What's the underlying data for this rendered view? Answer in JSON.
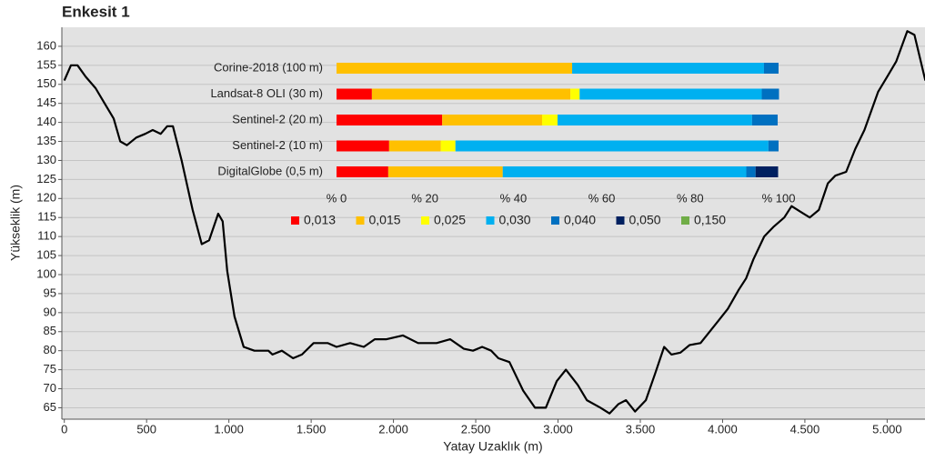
{
  "chart_data": [
    {
      "type": "line",
      "title": "Enkesit 1",
      "x_label": "Yatay Uzaklık (m)",
      "y_label": "Yükseklik (m)",
      "color": "#000000",
      "x": [
        0,
        40,
        80,
        130,
        190,
        245,
        300,
        340,
        380,
        437,
        492,
        537,
        586,
        625,
        660,
        713,
        780,
        835,
        880,
        935,
        962,
        990,
        1034,
        1090,
        1155,
        1240,
        1265,
        1322,
        1390,
        1444,
        1515,
        1600,
        1654,
        1737,
        1820,
        1886,
        1958,
        2057,
        2150,
        2262,
        2345,
        2428,
        2483,
        2539,
        2594,
        2638,
        2705,
        2788,
        2860,
        2926,
        2992,
        3048,
        3120,
        3175,
        3258,
        3313,
        3368,
        3413,
        3468,
        3534,
        3590,
        3645,
        3689,
        3744,
        3800,
        3866,
        3921,
        3977,
        4032,
        4098,
        4143,
        4187,
        4253,
        4308,
        4375,
        4419,
        4474,
        4530,
        4585,
        4640,
        4685,
        4751,
        4806,
        4862,
        4945,
        5000,
        5055,
        5122,
        5166,
        5232
      ],
      "values": [
        151,
        155,
        155,
        152,
        149,
        145,
        141,
        135,
        134,
        136,
        137,
        138,
        137,
        139,
        139,
        130,
        117,
        108,
        109,
        116,
        114,
        101,
        89,
        81,
        80,
        80,
        79,
        80,
        78,
        79,
        82,
        82,
        81,
        82,
        81,
        83,
        83,
        84,
        82,
        82,
        83,
        80.5,
        80,
        81,
        80,
        78,
        77,
        69.5,
        65,
        65,
        72,
        75,
        71,
        67,
        65,
        63.5,
        66,
        67,
        64,
        67,
        74,
        81,
        79,
        79.5,
        81.5,
        82,
        85,
        88,
        91,
        96,
        99,
        104,
        110,
        112.5,
        115,
        118,
        116.5,
        115,
        117,
        124,
        126,
        127,
        133,
        138,
        148,
        152,
        156,
        164,
        163,
        151
      ],
      "xlim": [
        -15,
        5230
      ],
      "ylim": [
        62,
        165
      ],
      "xticks": [
        0,
        500,
        {
          "value": 1000,
          "label": "1.000"
        },
        {
          "value": 1500,
          "label": "1.500"
        },
        {
          "value": 2000,
          "label": "2.000"
        },
        {
          "value": 2500,
          "label": "2.500"
        },
        {
          "value": 3000,
          "label": "3.000"
        },
        {
          "value": 3500,
          "label": "3.500"
        },
        {
          "value": 4000,
          "label": "4.000"
        },
        {
          "value": 4500,
          "label": "4.500"
        },
        {
          "value": 5000,
          "label": "5.000"
        }
      ],
      "yticks": [
        65,
        70,
        75,
        80,
        85,
        90,
        95,
        100,
        105,
        110,
        115,
        120,
        125,
        130,
        135,
        140,
        145,
        150,
        155,
        160
      ],
      "grid": true
    },
    {
      "type": "stacked-barh",
      "categories": [
        "Corine-2018 (100 m)",
        "Landsat-8 OLI (30 m)",
        "Sentinel-2 (20 m)",
        "Sentinel-2 (10 m)",
        "DigitalGlobe (0,5 m)"
      ],
      "series": [
        {
          "name": "0,013",
          "color": "#ff0000",
          "values": [
            0,
            8.0,
            23.9,
            11.9,
            11.7
          ]
        },
        {
          "name": "0,015",
          "color": "#ffc000",
          "values": [
            53.3,
            44.9,
            22.6,
            11.7,
            25.9
          ]
        },
        {
          "name": "0,025",
          "color": "#ffff00",
          "values": [
            0,
            2.1,
            3.5,
            3.3,
            0
          ]
        },
        {
          "name": "0,030",
          "color": "#00b0f0",
          "values": [
            43.4,
            41.2,
            44.0,
            70.8,
            55.1
          ]
        },
        {
          "name": "0,040",
          "color": "#0070c0",
          "values": [
            3.3,
            3.9,
            5.8,
            2.3,
            2.1
          ]
        },
        {
          "name": "0,050",
          "color": "#002060",
          "values": [
            0,
            0,
            0,
            0,
            5.1
          ]
        },
        {
          "name": "0,150",
          "color": "#70ad47",
          "values": [
            0,
            0,
            0,
            0,
            0
          ]
        }
      ],
      "xlim": [
        0,
        100
      ],
      "xticks": [
        {
          "value": 0,
          "label": "% 0"
        },
        {
          "value": 20,
          "label": "% 20"
        },
        {
          "value": 40,
          "label": "% 40"
        },
        {
          "value": 60,
          "label": "% 60"
        },
        {
          "value": 80,
          "label": "% 80"
        },
        {
          "value": 100,
          "label": "% 100"
        }
      ],
      "legend": "bottom"
    }
  ]
}
